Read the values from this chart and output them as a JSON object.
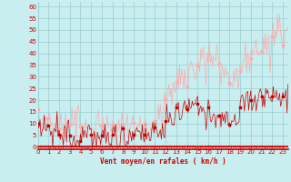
{
  "xlabel": "Vent moyen/en rafales ( km/h )",
  "xlabel_color": "#cc0000",
  "background_color": "#c8eef0",
  "grid_color": "#99ccd0",
  "line_color_avg": "#cc0000",
  "line_color_gust": "#ffaaaa",
  "marker_color_avg": "#cc0000",
  "marker_color_gust": "#ffaaaa",
  "xlim": [
    0,
    23.5
  ],
  "ylim": [
    -1,
    62
  ],
  "yticks": [
    0,
    5,
    10,
    15,
    20,
    25,
    30,
    35,
    40,
    45,
    50,
    55,
    60
  ],
  "xticks": [
    0,
    1,
    2,
    3,
    4,
    5,
    6,
    7,
    8,
    9,
    10,
    11,
    12,
    13,
    14,
    15,
    16,
    17,
    18,
    19,
    20,
    21,
    22,
    23
  ],
  "avg_wind_hourly": [
    7,
    6,
    5,
    4,
    5,
    4,
    3,
    4,
    5,
    5,
    6,
    8,
    12,
    16,
    17,
    16,
    14,
    11,
    12,
    20,
    21,
    20,
    21,
    22
  ],
  "gust_wind_hourly": [
    9,
    9,
    9,
    13,
    9,
    8,
    8,
    8,
    9,
    9,
    10,
    14,
    25,
    30,
    32,
    36,
    38,
    32,
    30,
    36,
    40,
    44,
    52,
    48
  ]
}
